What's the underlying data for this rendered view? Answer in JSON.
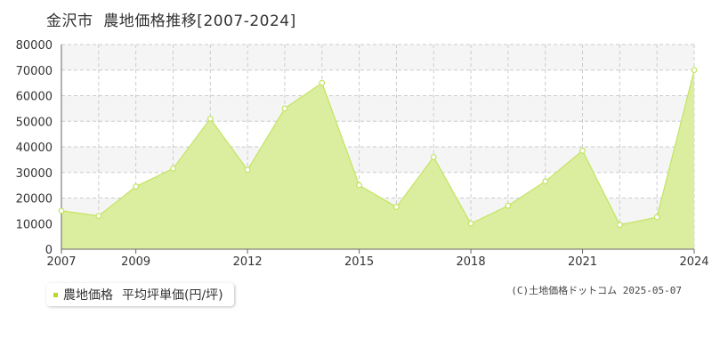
{
  "title": "金沢市  農地価格推移[2007-2024]",
  "legend": {
    "series_label": "農地価格",
    "unit_label": "平均坪単価(円/坪)"
  },
  "copyright": "(C)土地価格ドットコム 2025-05-07",
  "colors": {
    "fill": "#dbeea0",
    "line": "#c3e45f",
    "marker": "#b5d92c",
    "band": "#f5f5f5",
    "grid": "#cccccc",
    "axis": "#666666"
  },
  "chart_data": {
    "type": "area",
    "x": [
      2007,
      2008,
      2009,
      2010,
      2011,
      2012,
      2013,
      2014,
      2015,
      2016,
      2017,
      2018,
      2019,
      2020,
      2021,
      2022,
      2023,
      2024
    ],
    "values": [
      15000,
      13000,
      24500,
      31500,
      51000,
      31000,
      55000,
      65000,
      25000,
      16500,
      36000,
      10000,
      17000,
      26500,
      38500,
      9500,
      12500,
      70000
    ],
    "ylim": [
      0,
      80000
    ],
    "yticks": [
      0,
      10000,
      20000,
      30000,
      40000,
      50000,
      60000,
      70000,
      80000
    ],
    "xtick_labels": [
      "2007",
      "2009",
      "2012",
      "2015",
      "2018",
      "2021",
      "2024"
    ],
    "grid": true,
    "legend_position": "bottom-left"
  }
}
